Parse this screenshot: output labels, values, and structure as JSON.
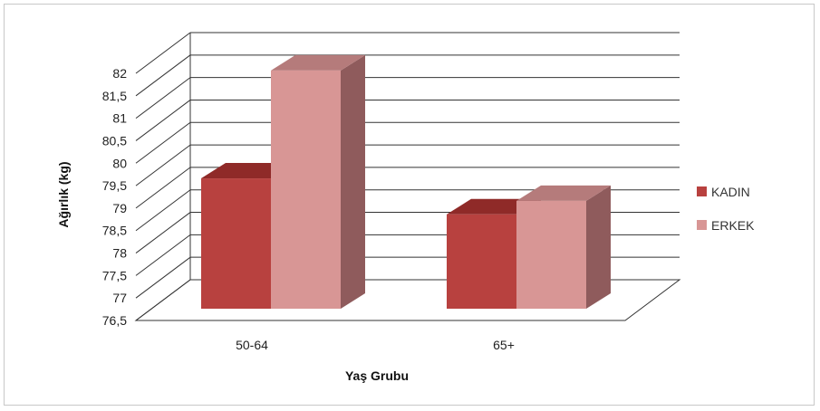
{
  "chart_data": {
    "type": "bar",
    "style": "3d-clustered",
    "categories": [
      "50-64",
      "65+"
    ],
    "series": [
      {
        "name": "KADIN",
        "values": [
          79.4,
          78.6
        ],
        "color": "#b8413f",
        "top_color": "#8f2a28",
        "side_color": "#7e2220"
      },
      {
        "name": "ERKEK",
        "values": [
          81.8,
          78.9
        ],
        "color": "#d89695",
        "top_color": "#b57b7b",
        "side_color": "#8f5b5c"
      }
    ],
    "xlabel": "Yaş Grubu",
    "ylabel": "Ağırlık  (kg)",
    "ylim": [
      76.5,
      82
    ],
    "yticks": [
      "76,5",
      "77",
      "77,5",
      "78",
      "78,5",
      "79",
      "79,5",
      "80",
      "80,5",
      "81",
      "81,5",
      "82"
    ],
    "grid": true,
    "legend": "right"
  }
}
